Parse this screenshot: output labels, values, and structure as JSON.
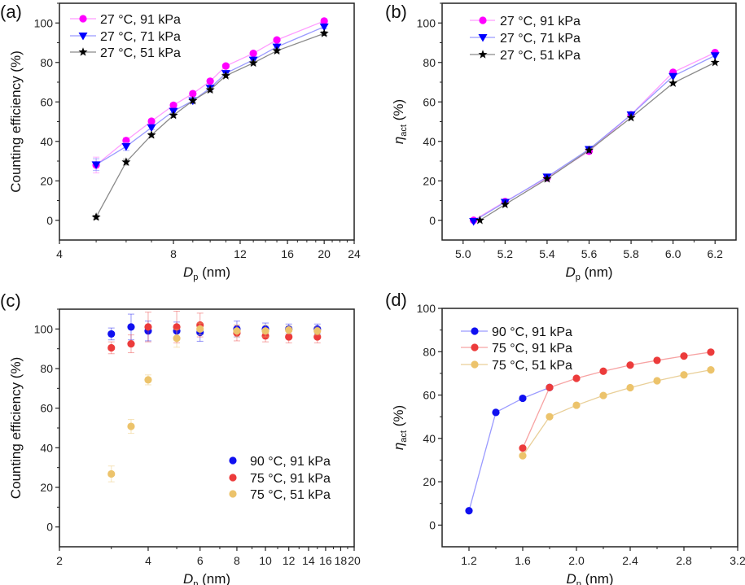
{
  "chart_data": [
    {
      "panel_label": "(a)",
      "type": "line",
      "xscale": "log",
      "xlabel": {
        "symbol": "D",
        "sub": "p",
        "unit": " (nm)"
      },
      "ylabel": {
        "text": "Counting efficiency (%)"
      },
      "xlim": [
        4,
        24
      ],
      "ylim": [
        -10,
        110
      ],
      "xticks": [
        4,
        8,
        12,
        16,
        20,
        24
      ],
      "xtick_labels": [
        "4",
        "8",
        "12",
        "16",
        "20",
        "24"
      ],
      "yticks": [
        0,
        20,
        40,
        60,
        80,
        100
      ],
      "ytick_labels": [
        "0",
        "20",
        "40",
        "60",
        "80",
        "100"
      ],
      "legend_position": "top-left",
      "series": [
        {
          "name": "27 °C, 91 kPa",
          "color": "#ff00ff",
          "line_color": "#ff9cff",
          "marker": "circle",
          "x": [
            5,
            6,
            7,
            8,
            9,
            10,
            11,
            13,
            15,
            20
          ],
          "y": [
            28,
            40.4,
            50.2,
            58.3,
            64.2,
            70.5,
            78.2,
            84.6,
            91.4,
            101
          ],
          "err": [
            4,
            1.5,
            1,
            1,
            1,
            1,
            1,
            1,
            1,
            1
          ]
        },
        {
          "name": "27 °C, 71 kPa",
          "color": "#0000ff",
          "line_color": "#9a9aff",
          "marker": "triangle-down",
          "x": [
            5,
            6,
            7,
            8,
            9,
            10,
            11,
            13,
            15,
            20
          ],
          "y": [
            28.2,
            37.4,
            47,
            55.3,
            60.6,
            67,
            74.5,
            81.3,
            87.9,
            98.1
          ],
          "err": [
            3,
            2,
            1,
            1,
            1,
            1,
            1,
            1,
            1,
            1
          ]
        },
        {
          "name": "27 °C, 51 kPa",
          "color": "#000000",
          "line_color": "#8a8a8a",
          "marker": "star",
          "x": [
            5,
            6,
            7,
            8,
            9,
            10,
            11,
            13,
            15,
            20
          ],
          "y": [
            1.6,
            29.5,
            43.2,
            53.2,
            60.6,
            66.1,
            73.3,
            79.7,
            85.9,
            94.7
          ],
          "err": [
            1,
            1.5,
            1,
            1,
            1,
            1,
            1,
            1,
            1,
            1
          ]
        }
      ]
    },
    {
      "panel_label": "(b)",
      "type": "line",
      "xscale": "linear",
      "xlabel": {
        "symbol": "D",
        "sub": "p",
        "unit": " (nm)"
      },
      "ylabel": {
        "symbol": "η",
        "sub": "act",
        "unit": " (%)"
      },
      "xlim": [
        4.9,
        6.3
      ],
      "ylim": [
        -10,
        110
      ],
      "xticks": [
        5.0,
        5.2,
        5.4,
        5.6,
        5.8,
        6.0,
        6.2
      ],
      "xtick_labels": [
        "5.0",
        "5.2",
        "5.4",
        "5.6",
        "5.8",
        "6.0",
        "6.2"
      ],
      "yticks": [
        0,
        20,
        40,
        60,
        80,
        100
      ],
      "ytick_labels": [
        "0",
        "20",
        "40",
        "60",
        "80",
        "100"
      ],
      "legend_position": "top-left",
      "series": [
        {
          "name": "27 °C, 91 kPa",
          "color": "#ff00ff",
          "line_color": "#ff9cff",
          "marker": "circle",
          "x": [
            5.05,
            5.2,
            5.4,
            5.6,
            5.8,
            6.0,
            6.2
          ],
          "y": [
            0,
            9.5,
            21.5,
            35,
            53.5,
            75,
            85
          ]
        },
        {
          "name": "27 °C, 71 kPa",
          "color": "#0000ff",
          "line_color": "#9a9aff",
          "marker": "triangle-down",
          "x": [
            5.05,
            5.2,
            5.4,
            5.6,
            5.8,
            6.0,
            6.2
          ],
          "y": [
            -0.5,
            9.2,
            22,
            36,
            53.5,
            73,
            83.5
          ]
        },
        {
          "name": "27 °C, 51 kPa",
          "color": "#000000",
          "line_color": "#8a8a8a",
          "marker": "star",
          "x": [
            5.08,
            5.2,
            5.4,
            5.6,
            5.8,
            6.0,
            6.2
          ],
          "y": [
            0,
            8,
            21,
            35.5,
            52,
            69.5,
            80
          ]
        }
      ]
    },
    {
      "panel_label": "(c)",
      "type": "scatter",
      "xscale": "log",
      "xlabel": {
        "symbol": "D",
        "sub": "p",
        "unit": " (nm)"
      },
      "ylabel": {
        "text": "Counting efficiency (%)"
      },
      "xlim": [
        2,
        20
      ],
      "ylim": [
        -10,
        110
      ],
      "xticks": [
        2,
        4,
        6,
        8,
        10,
        12,
        14,
        16,
        18,
        20
      ],
      "xtick_labels": [
        "2",
        "4",
        "6",
        "8",
        "10",
        "12",
        "14",
        "16",
        "18",
        "20"
      ],
      "yticks": [
        0,
        20,
        40,
        60,
        80,
        100
      ],
      "ytick_labels": [
        "0",
        "20",
        "40",
        "60",
        "80",
        "100"
      ],
      "legend_position": "bottom-right",
      "series": [
        {
          "name": "90 °C, 91 kPa",
          "color": "#1010f0",
          "line_color": "",
          "marker": "circle",
          "x": [
            3,
            3.5,
            4,
            5,
            6,
            8,
            10,
            12,
            15
          ],
          "y": [
            97.5,
            101,
            99,
            99,
            98.3,
            100,
            100,
            100,
            100
          ],
          "err": [
            3,
            6.5,
            5,
            4.5,
            4.5,
            4,
            3,
            2.5,
            2.5
          ]
        },
        {
          "name": "75 °C, 91 kPa",
          "color": "#ec3b3b",
          "line_color": "",
          "marker": "circle",
          "x": [
            3,
            3.5,
            4,
            5,
            6,
            8,
            10,
            12,
            15
          ],
          "y": [
            90.5,
            92.5,
            101,
            101,
            102,
            98,
            96.5,
            96,
            96
          ],
          "err": [
            3,
            4.5,
            7.5,
            8,
            6,
            4,
            3,
            3,
            3
          ]
        },
        {
          "name": "75 °C, 51 kPa",
          "color": "#ecc36b",
          "line_color": "",
          "marker": "circle",
          "x": [
            3,
            3.5,
            4,
            5,
            6,
            8,
            10,
            12,
            15
          ],
          "y": [
            26.8,
            50.8,
            74.3,
            95.3,
            100,
            99,
            99,
            99.5,
            99
          ],
          "err": [
            4,
            3.5,
            2.5,
            4.5,
            3,
            3,
            3,
            2,
            2
          ]
        }
      ]
    },
    {
      "panel_label": "(d)",
      "type": "line",
      "xscale": "linear",
      "xlabel": {
        "symbol": "D",
        "sub": "p",
        "unit": " (nm)"
      },
      "ylabel": {
        "symbol": "η",
        "sub": "act",
        "unit": " (%)"
      },
      "xlim": [
        1.0,
        3.2
      ],
      "ylim": [
        -10,
        100
      ],
      "xticks": [
        1.2,
        1.6,
        2.0,
        2.4,
        2.8,
        3.2
      ],
      "xtick_labels": [
        "1.2",
        "1.6",
        "2.0",
        "2.4",
        "2.8",
        "3.2"
      ],
      "yticks": [
        0,
        20,
        40,
        60,
        80,
        100
      ],
      "ytick_labels": [
        "0",
        "20",
        "40",
        "60",
        "80",
        "100"
      ],
      "legend_position": "top-left",
      "series": [
        {
          "name": "90 °C, 91 kPa",
          "color": "#1010f0",
          "line_color": "#9a9aff",
          "marker": "circle",
          "x": [
            1.2,
            1.4,
            1.6,
            1.8
          ],
          "y": [
            6.6,
            52,
            58.5,
            63.5
          ]
        },
        {
          "name": "75 °C, 91 kPa",
          "color": "#ec3b3b",
          "line_color": "#f7a3a3",
          "marker": "circle",
          "x": [
            1.6,
            1.8,
            2.0,
            2.2,
            2.4,
            2.6,
            2.8,
            3.0
          ],
          "y": [
            35.5,
            63.5,
            67.7,
            71,
            73.8,
            76,
            78,
            79.8
          ]
        },
        {
          "name": "75 °C, 51 kPa",
          "color": "#ecc36b",
          "line_color": "#e9cf98",
          "marker": "circle",
          "x": [
            1.6,
            1.8,
            2.0,
            2.2,
            2.4,
            2.6,
            2.8,
            3.0
          ],
          "y": [
            32,
            50,
            55.3,
            59.8,
            63.4,
            66.6,
            69.3,
            71.6
          ]
        }
      ]
    }
  ]
}
